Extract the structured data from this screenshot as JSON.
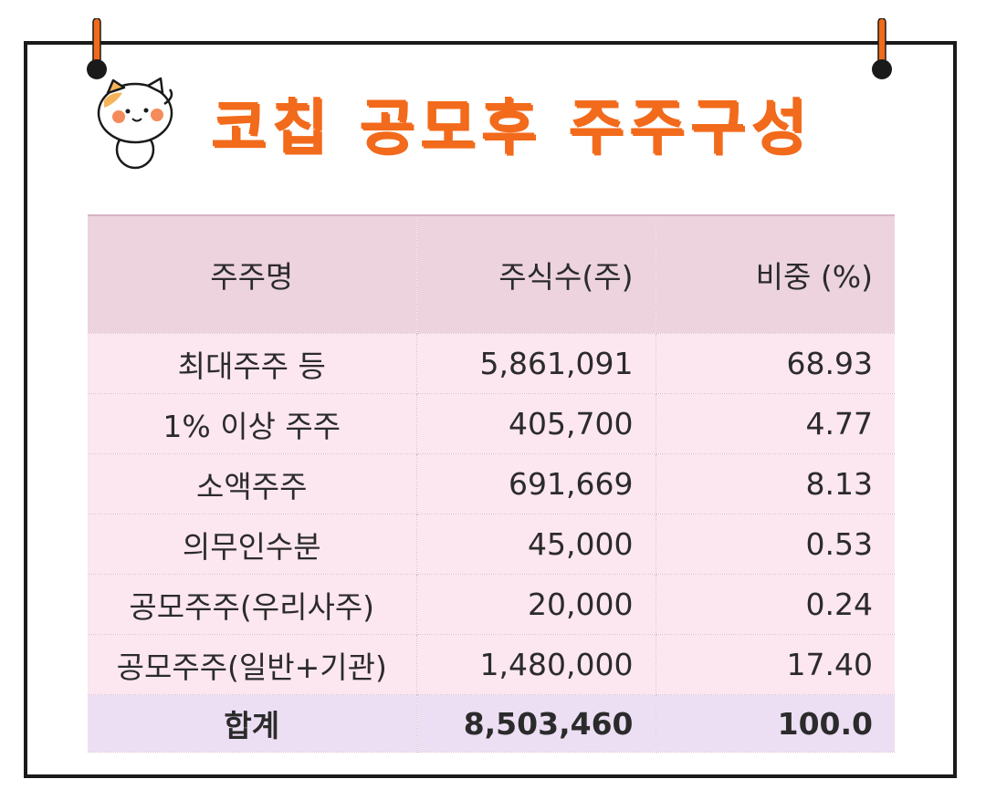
{
  "title": "코칩 공모후 주주구성",
  "colors": {
    "accent": "#f26a1b",
    "header_bg": "#ecd3de",
    "row_bg": "#fce6ef",
    "total_bg": "#ecdff4"
  },
  "table": {
    "headers": [
      "주주명",
      "주식수(주)",
      "비중 (%)"
    ],
    "rows": [
      [
        "최대주주 등",
        "5,861,091",
        "68.93"
      ],
      [
        "1% 이상 주주",
        "405,700",
        "4.77"
      ],
      [
        "소액주주",
        "691,669",
        "8.13"
      ],
      [
        "의무인수분",
        "45,000",
        "0.53"
      ],
      [
        "공모주주(우리사주)",
        "20,000",
        "0.24"
      ],
      [
        "공모주주(일반+기관)",
        "1,480,000",
        "17.40"
      ]
    ],
    "total": [
      "합계",
      "8,503,460",
      "100.0"
    ]
  },
  "icons": {
    "mascot": "cat-mascot-icon",
    "pin": "pushpin-icon"
  }
}
